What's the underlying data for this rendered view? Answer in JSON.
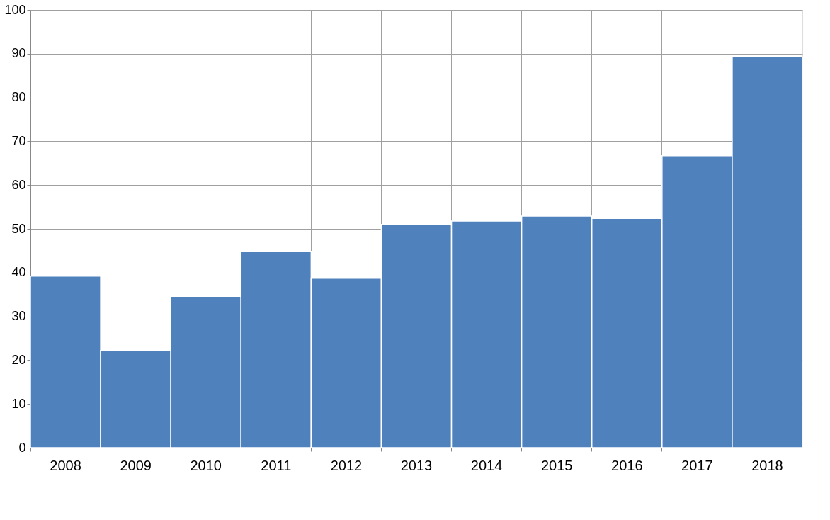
{
  "chart_data": {
    "type": "bar",
    "categories": [
      "2008",
      "2009",
      "2010",
      "2011",
      "2012",
      "2013",
      "2014",
      "2015",
      "2016",
      "2017",
      "2018"
    ],
    "values": [
      39.2,
      22.2,
      34.6,
      44.8,
      38.7,
      51.0,
      51.8,
      52.9,
      52.4,
      66.7,
      89.3
    ],
    "color": "#4f81bd",
    "ylim": [
      0,
      100
    ],
    "yticks": [
      0,
      10,
      20,
      30,
      40,
      50,
      60,
      70,
      80,
      90,
      100
    ],
    "grid": true
  }
}
